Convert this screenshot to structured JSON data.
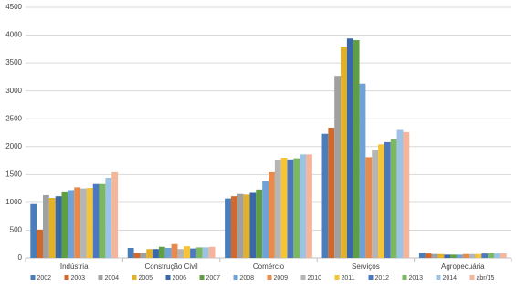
{
  "chart_data": {
    "type": "bar",
    "categories": [
      "Indústria",
      "Construção Civil",
      "Comércio",
      "Serviços",
      "Agropecuária"
    ],
    "series": [
      {
        "name": "2002",
        "color": "#4a7ebb",
        "values": [
          970,
          180,
          1070,
          2230,
          90
        ]
      },
      {
        "name": "2003",
        "color": "#d0692b",
        "values": [
          510,
          90,
          1110,
          2340,
          80
        ]
      },
      {
        "name": "2004",
        "color": "#a0a0a0",
        "values": [
          1130,
          90,
          1150,
          3270,
          70
        ]
      },
      {
        "name": "2005",
        "color": "#e3b128",
        "values": [
          1080,
          160,
          1140,
          3780,
          70
        ]
      },
      {
        "name": "2006",
        "color": "#3a67a8",
        "values": [
          1110,
          160,
          1170,
          3940,
          60
        ]
      },
      {
        "name": "2007",
        "color": "#5f9e43",
        "values": [
          1180,
          200,
          1230,
          3910,
          60
        ]
      },
      {
        "name": "2008",
        "color": "#6fa3d8",
        "values": [
          1220,
          180,
          1380,
          3130,
          60
        ]
      },
      {
        "name": "2009",
        "color": "#e88a4b",
        "values": [
          1270,
          250,
          1540,
          1810,
          70
        ]
      },
      {
        "name": "2010",
        "color": "#b5b5b5",
        "values": [
          1250,
          160,
          1750,
          1940,
          70
        ]
      },
      {
        "name": "2011",
        "color": "#f5c538",
        "values": [
          1260,
          210,
          1800,
          2040,
          70
        ]
      },
      {
        "name": "2012",
        "color": "#4d78c0",
        "values": [
          1330,
          170,
          1770,
          2080,
          80
        ]
      },
      {
        "name": "2013",
        "color": "#7cb860",
        "values": [
          1330,
          190,
          1790,
          2130,
          90
        ]
      },
      {
        "name": "2014",
        "color": "#9cc3e6",
        "values": [
          1440,
          190,
          1860,
          2300,
          80
        ]
      },
      {
        "name": "abr/15",
        "color": "#f4b59a",
        "values": [
          1540,
          200,
          1860,
          2260,
          80
        ]
      }
    ],
    "ylim": [
      0,
      4500
    ],
    "yticks": [
      0,
      500,
      1000,
      1500,
      2000,
      2500,
      3000,
      3500,
      4000,
      4500
    ],
    "grid": true
  }
}
